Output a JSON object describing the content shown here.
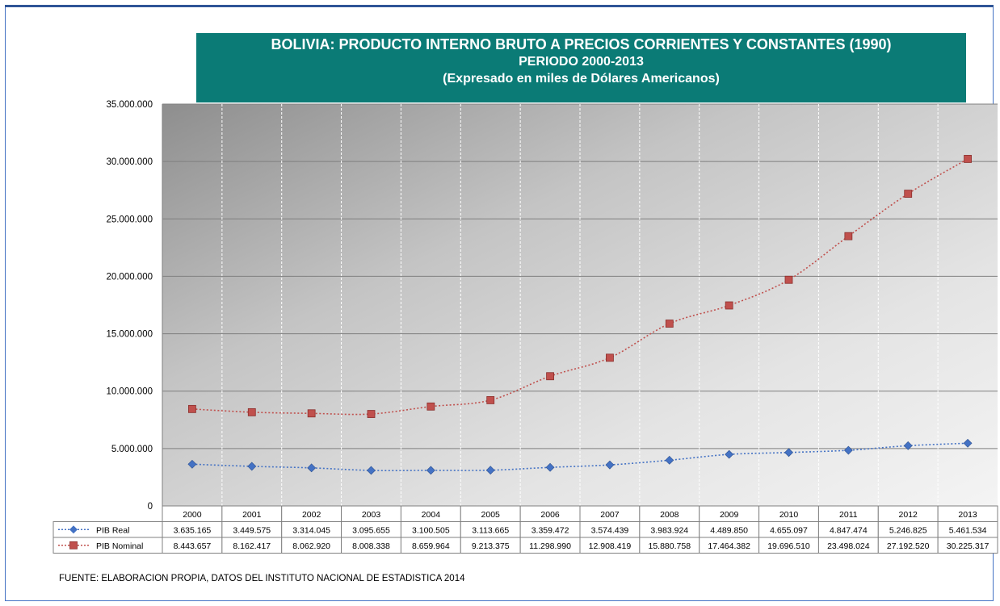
{
  "header": {
    "line1": "BOLIVIA: PRODUCTO INTERNO BRUTO A PRECIOS CORRIENTES Y CONSTANTES (1990)",
    "line2": "PERIODO 2000-2013",
    "line3": "(Expresado en miles de Dólares Americanos)"
  },
  "footer": {
    "source": "FUENTE: ELABORACION PROPIA, DATOS DEL INSTITUTO NACIONAL DE ESTADISTICA 2014"
  },
  "chart_data": {
    "type": "line",
    "title": "BOLIVIA: PRODUCTO INTERNO BRUTO A PRECIOS CORRIENTES Y CONSTANTES (1990) PERIODO 2000-2013 (Expresado en miles de Dólares Americanos)",
    "categories": [
      "2000",
      "2001",
      "2002",
      "2003",
      "2004",
      "2005",
      "2006",
      "2007",
      "2008",
      "2009",
      "2010",
      "2011",
      "2012",
      "2013"
    ],
    "ylim": [
      0,
      35000000
    ],
    "yticks": [
      0,
      5000000,
      10000000,
      15000000,
      20000000,
      25000000,
      30000000,
      35000000
    ],
    "ytick_labels": [
      "0",
      "5.000.000",
      "10.000.000",
      "15.000.000",
      "20.000.000",
      "25.000.000",
      "30.000.000",
      "35.000.000"
    ],
    "grid": "horizontal and vertical",
    "legend": "data table below chart",
    "series": [
      {
        "name": "PIB Real",
        "color": "#4472c4",
        "marker": "diamond",
        "values": [
          3635165,
          3449575,
          3314045,
          3095655,
          3100505,
          3113665,
          3359472,
          3574439,
          3983924,
          4489850,
          4655097,
          4847474,
          5246825,
          5461534
        ],
        "labels": [
          "3.635.165",
          "3.449.575",
          "3.314.045",
          "3.095.655",
          "3.100.505",
          "3.113.665",
          "3.359.472",
          "3.574.439",
          "3.983.924",
          "4.489.850",
          "4.655.097",
          "4.847.474",
          "5.246.825",
          "5.461.534"
        ]
      },
      {
        "name": "PIB Nominal",
        "color": "#c0504d",
        "marker": "square",
        "values": [
          8443657,
          8162417,
          8062920,
          8008338,
          8659964,
          9213375,
          11298990,
          12908419,
          15880758,
          17464382,
          19696510,
          23498024,
          27192520,
          30225317
        ],
        "labels": [
          "8.443.657",
          "8.162.417",
          "8.062.920",
          "8.008.338",
          "8.659.964",
          "9.213.375",
          "11.298.990",
          "12.908.419",
          "15.880.758",
          "17.464.382",
          "19.696.510",
          "23.498.024",
          "27.192.520",
          "30.225.317"
        ]
      }
    ]
  }
}
